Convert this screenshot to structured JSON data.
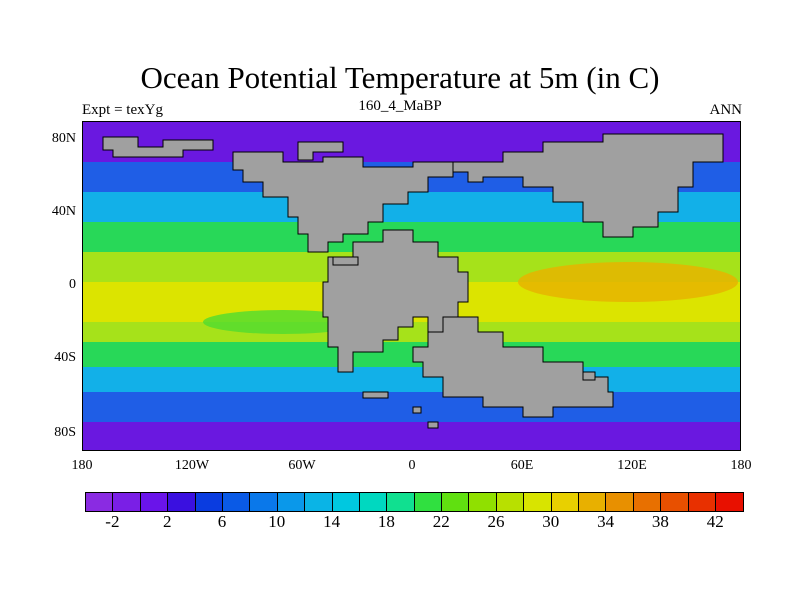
{
  "title": "Ocean Potential Temperature at 5m (in C)",
  "subtitle_left": "Expt = texYg",
  "subtitle_center": "160_4_MaBP",
  "subtitle_right": "ANN",
  "lat_labels": [
    "80N",
    "40N",
    "0",
    "40S",
    "80S"
  ],
  "lon_labels": [
    "180",
    "120W",
    "60W",
    "0",
    "60E",
    "120E",
    "180"
  ],
  "colorbar": {
    "labels": [
      "-2",
      "2",
      "6",
      "10",
      "14",
      "18",
      "22",
      "26",
      "30",
      "34",
      "38",
      "42"
    ],
    "colors": [
      "#8a2be2",
      "#7a1fe6",
      "#6a14ea",
      "#3a10e0",
      "#0a3ce0",
      "#0a5ae6",
      "#0a78ea",
      "#0a98ea",
      "#0ab4e6",
      "#00c8e0",
      "#00d8c0",
      "#10e090",
      "#30e040",
      "#60e010",
      "#90e000",
      "#b8e000",
      "#d8e400",
      "#e8d000",
      "#e8b000",
      "#e89000",
      "#e87000",
      "#e85000",
      "#e83000",
      "#e81000"
    ]
  },
  "colors": {
    "land": "#a0a0a0",
    "polar": "#6a18e0",
    "subpolar": "#1f5ee6",
    "midlat": "#12b0e8",
    "temperate": "#28d858",
    "subtropic": "#a6e21a",
    "tropic": "#dce400",
    "warm_pool": "#e6b400"
  }
}
